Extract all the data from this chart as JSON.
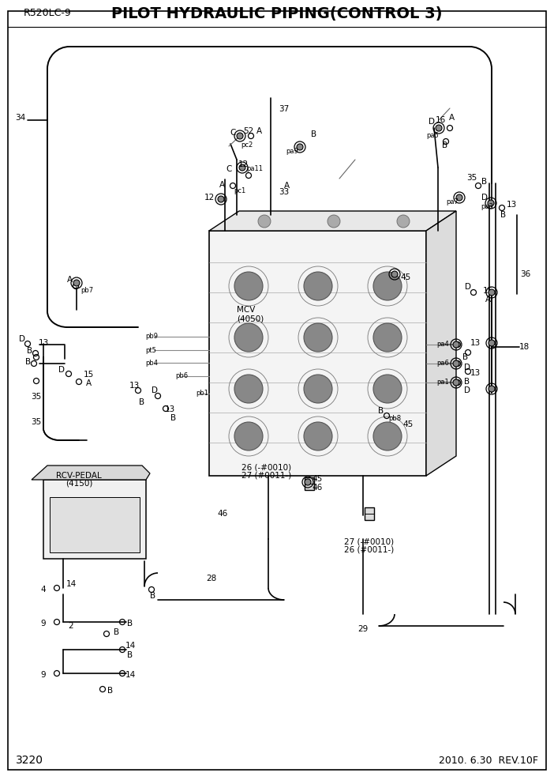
{
  "title": "PILOT HYDRAULIC PIPING(CONTROL 3)",
  "model": "R520LC-9",
  "page": "3220",
  "date": "2010. 6.30  REV.10F",
  "bg_color": "#ffffff",
  "line_color": "#000000",
  "title_fontsize": 14,
  "model_fontsize": 9,
  "label_fontsize": 7.5,
  "small_fontsize": 6.5
}
